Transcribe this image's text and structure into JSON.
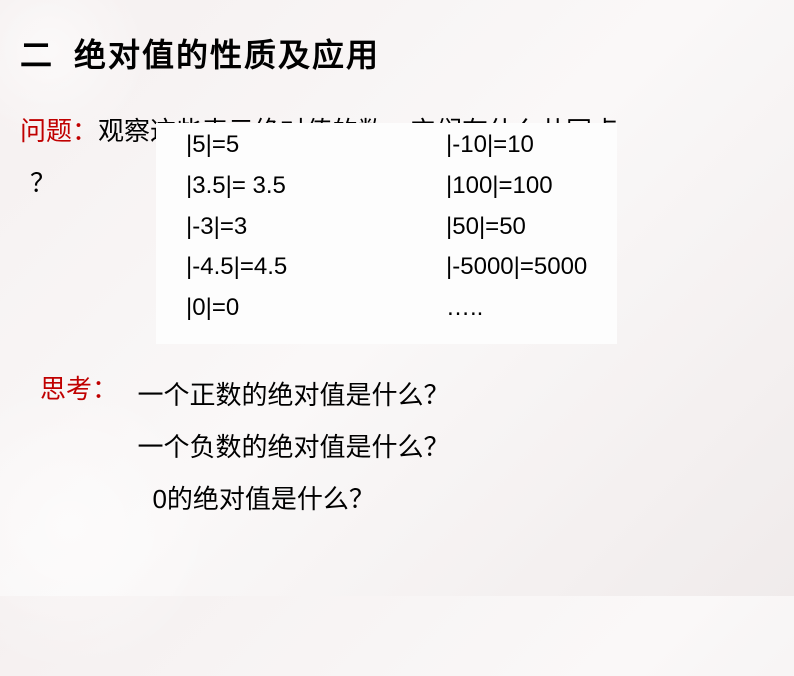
{
  "section": {
    "number": "二",
    "title": "绝对值的性质及应用"
  },
  "question": {
    "label": "问题：",
    "text": "观察这些表示绝对值的数，它们有什么共同点",
    "mark": "？"
  },
  "examples": {
    "rows": [
      {
        "left": "|5|=5",
        "right": "|-10|=10"
      },
      {
        "left": "|3.5|= 3.5",
        "right": " |100|=100"
      },
      {
        "left": "|-3|=3",
        "right": "  |50|=50"
      },
      {
        "left": "|-4.5|=4.5",
        "right": " |-5000|=5000"
      },
      {
        "left": "|0|=0",
        "right": "….."
      }
    ]
  },
  "think": {
    "label": "思考：",
    "questions": [
      "一个正数的绝对值是什么？",
      "一个负数的绝对值是什么？",
      "0的绝对值是什么？"
    ]
  },
  "styling": {
    "title_color": "#000000",
    "label_color": "#c00000",
    "text_color": "#000000",
    "background_gradient_start": "#f5f0f0",
    "background_gradient_end": "#f0ebeb",
    "examples_bg": "#fdfdfd",
    "title_fontsize": 32,
    "body_fontsize": 26,
    "example_fontsize": 24
  }
}
